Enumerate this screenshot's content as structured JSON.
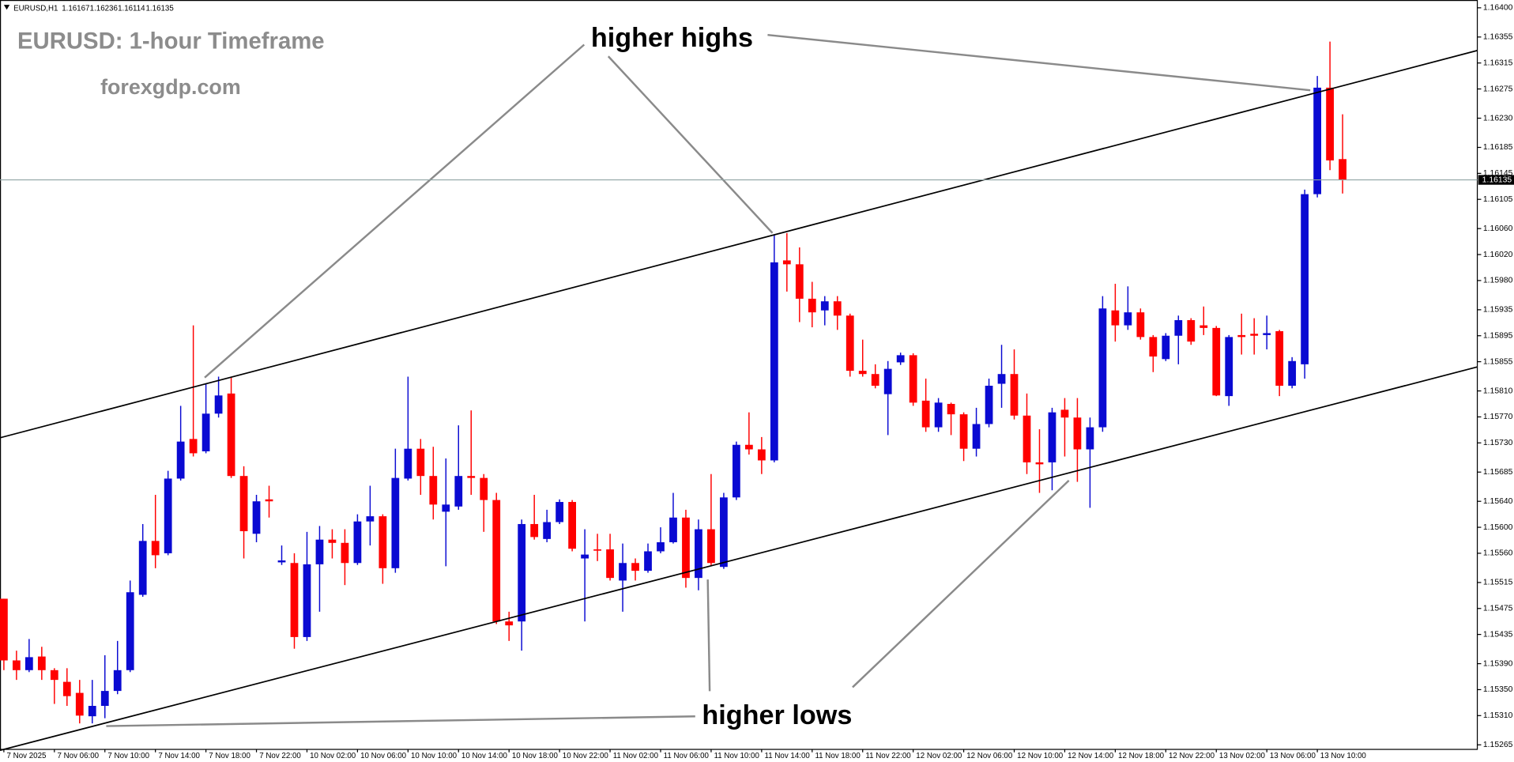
{
  "chart_data": {
    "type": "candlestick",
    "title": "EURUSD: 1-hour Timeframe",
    "subtitle": "forexgdp.com",
    "symbol": "EURUSD,H1",
    "annotations": [
      "higher highs",
      "higher lows"
    ],
    "up_color": "#0a0ad2",
    "down_color": "#ff0000",
    "ylim": [
      1.15258,
      1.16412
    ],
    "yticks": [
      {
        "value": 1.164,
        "label": "1.16400"
      },
      1.16355,
      1.16315,
      1.16275,
      {
        "value": 1.1623,
        "label": "1.16230"
      },
      1.16185,
      1.16145,
      1.16105,
      {
        "value": 1.1606,
        "label": "1.16060"
      },
      {
        "value": 1.1602,
        "label": "1.16020"
      },
      {
        "value": 1.1598,
        "label": "1.15980"
      },
      1.15935,
      1.15895,
      1.15855,
      {
        "value": 1.1581,
        "label": "1.15810"
      },
      {
        "value": 1.1577,
        "label": "1.15770"
      },
      {
        "value": 1.1573,
        "label": "1.15730"
      },
      1.15685,
      {
        "value": 1.1564,
        "label": "1.15640"
      },
      {
        "value": 1.156,
        "label": "1.15600"
      },
      {
        "value": 1.1556,
        "label": "1.15560"
      },
      1.15515,
      1.15475,
      1.15435,
      {
        "value": 1.1539,
        "label": "1.15390"
      },
      {
        "value": 1.1535,
        "label": "1.15350"
      },
      {
        "value": 1.1531,
        "label": "1.15310"
      },
      1.15265
    ],
    "x": [
      "7 Nov 2025",
      null,
      null,
      null,
      "7 Nov 06:00",
      null,
      null,
      null,
      "7 Nov 10:00",
      null,
      null,
      null,
      "7 Nov 14:00",
      null,
      null,
      null,
      "7 Nov 18:00",
      null,
      null,
      null,
      "7 Nov 22:00",
      null,
      null,
      null,
      "10 Nov 02:00",
      null,
      null,
      null,
      "10 Nov 06:00",
      null,
      null,
      null,
      "10 Nov 10:00",
      null,
      null,
      null,
      "10 Nov 14:00",
      null,
      null,
      null,
      "10 Nov 18:00",
      null,
      null,
      null,
      "10 Nov 22:00",
      null,
      null,
      null,
      "11 Nov 02:00",
      null,
      null,
      null,
      "11 Nov 06:00",
      null,
      null,
      null,
      "11 Nov 10:00",
      null,
      null,
      null,
      "11 Nov 14:00",
      null,
      null,
      null,
      "11 Nov 18:00",
      null,
      null,
      null,
      "11 Nov 22:00",
      null,
      null,
      null,
      "12 Nov 02:00",
      null,
      null,
      null,
      "12 Nov 06:00",
      null,
      null,
      null,
      "12 Nov 10:00",
      null,
      null,
      null,
      "12 Nov 14:00",
      null,
      null,
      null,
      "12 Nov 18:00",
      null,
      null,
      null,
      "12 Nov 22:00",
      null,
      null,
      null,
      "13 Nov 02:00",
      null,
      null,
      null,
      "13 Nov 06:00",
      null,
      null,
      null,
      "13 Nov 10:00",
      null,
      null
    ],
    "open": [
      1.1549,
      1.15395,
      1.1538,
      1.15401,
      1.1538,
      1.15362,
      1.15345,
      1.15309,
      1.15325,
      1.15348,
      1.1538,
      1.15496,
      1.15579,
      1.1556,
      1.15675,
      1.15736,
      1.15717,
      1.15775,
      1.15806,
      1.15679,
      1.1559,
      1.15643,
      1.15546,
      1.15545,
      1.15431,
      1.15543,
      1.15581,
      1.15576,
      1.15545,
      1.15609,
      1.15617,
      1.15537,
      1.15675,
      1.15721,
      1.15679,
      1.15624,
      1.15632,
      1.15679,
      1.15676,
      1.15642,
      1.15455,
      1.15455,
      1.15605,
      1.15582,
      1.15608,
      1.15639,
      1.15552,
      1.15566,
      1.15566,
      1.15518,
      1.15545,
      1.15533,
      1.15563,
      1.15577,
      1.15615,
      1.15522,
      1.15597,
      1.15539,
      1.15646,
      1.15727,
      1.1572,
      1.15703,
      1.16011,
      1.16005,
      1.15952,
      1.15934,
      1.15948,
      1.15926,
      1.15841,
      1.15836,
      1.15805,
      1.15854,
      1.15865,
      1.15795,
      1.15754,
      1.1579,
      1.15774,
      1.15721,
      1.15759,
      1.15821,
      1.15836,
      1.15772,
      1.157,
      1.157,
      1.15781,
      1.15769,
      1.1572,
      1.15754,
      1.15934,
      1.15911,
      1.15931,
      1.15893,
      1.15859,
      1.15895,
      1.15919,
      1.15911,
      1.15907,
      1.15802,
      1.15896,
      1.15898,
      1.15896,
      1.15902,
      1.15818,
      1.15851,
      1.16113,
      1.16277,
      1.16167
    ],
    "high": [
      1.1549,
      1.1541,
      1.15428,
      1.15416,
      1.15383,
      1.15383,
      1.15365,
      1.15365,
      1.15403,
      1.15425,
      1.15518,
      1.15605,
      1.1565,
      1.15687,
      1.15787,
      1.15911,
      1.15821,
      1.15832,
      1.15832,
      1.15694,
      1.1565,
      1.15664,
      1.15572,
      1.1556,
      1.15593,
      1.15602,
      1.15597,
      1.15597,
      1.1562,
      1.15664,
      1.1562,
      1.15721,
      1.15832,
      1.15736,
      1.15724,
      1.15706,
      1.15757,
      1.1578,
      1.15682,
      1.15653,
      1.1547,
      1.15612,
      1.1565,
      1.15627,
      1.15643,
      1.15642,
      1.15597,
      1.1559,
      1.1559,
      1.15575,
      1.15552,
      1.15575,
      1.156,
      1.15653,
      1.15627,
      1.15612,
      1.15682,
      1.15653,
      1.15732,
      1.15777,
      1.15739,
      1.1605,
      1.16053,
      1.16031,
      1.15978,
      1.15956,
      1.15956,
      1.15929,
      1.15889,
      1.15851,
      1.15856,
      1.15869,
      1.15868,
      1.15829,
      1.15799,
      1.15792,
      1.15777,
      1.15784,
      1.15829,
      1.15881,
      1.15874,
      1.15806,
      1.15751,
      1.15784,
      1.15799,
      1.15799,
      1.15769,
      1.15956,
      1.15975,
      1.15971,
      1.15937,
      1.15896,
      1.15899,
      1.15926,
      1.15922,
      1.1594,
      1.1591,
      1.15896,
      1.15929,
      1.15922,
      1.15926,
      1.15904,
      1.15862,
      1.1612,
      1.16295,
      1.16348,
      1.16236
    ],
    "low": [
      1.1538,
      1.15365,
      1.15377,
      1.15365,
      1.15328,
      1.15325,
      1.15298,
      1.15298,
      1.15306,
      1.15343,
      1.15377,
      1.15493,
      1.15537,
      1.15557,
      1.15672,
      1.15709,
      1.15714,
      1.15769,
      1.15676,
      1.15552,
      1.15577,
      1.15615,
      1.15542,
      1.15413,
      1.15425,
      1.1547,
      1.15552,
      1.15511,
      1.15542,
      1.15572,
      1.15513,
      1.1553,
      1.15672,
      1.1565,
      1.15612,
      1.1554,
      1.15627,
      1.1565,
      1.15593,
      1.15451,
      1.15425,
      1.1541,
      1.15581,
      1.15577,
      1.15605,
      1.15563,
      1.15455,
      1.15548,
      1.15518,
      1.1547,
      1.15518,
      1.1553,
      1.1556,
      1.15575,
      1.15507,
      1.15503,
      1.1554,
      1.15536,
      1.15642,
      1.15712,
      1.15682,
      1.157,
      1.15963,
      1.15916,
      1.15908,
      1.15911,
      1.15904,
      1.15832,
      1.15832,
      1.15814,
      1.15742,
      1.1585,
      1.15787,
      1.15747,
      1.15747,
      1.15742,
      1.15702,
      1.15709,
      1.15754,
      1.15784,
      1.15766,
      1.15682,
      1.15653,
      1.15657,
      1.15709,
      1.1567,
      1.1563,
      1.15747,
      1.15886,
      1.15904,
      1.15889,
      1.15839,
      1.15856,
      1.15851,
      1.15881,
      1.15896,
      1.15802,
      1.15787,
      1.15866,
      1.15866,
      1.15874,
      1.15802,
      1.15814,
      1.15829,
      1.16108,
      1.1615,
      1.16114
    ],
    "close": [
      1.15395,
      1.1538,
      1.154,
      1.1538,
      1.15365,
      1.1534,
      1.1531,
      1.15325,
      1.15348,
      1.1538,
      1.155,
      1.15579,
      1.15557,
      1.15675,
      1.15732,
      1.15714,
      1.15775,
      1.15803,
      1.15679,
      1.15594,
      1.1564,
      1.1564,
      1.15549,
      1.15431,
      1.15543,
      1.15581,
      1.15576,
      1.15545,
      1.15609,
      1.15617,
      1.15537,
      1.15676,
      1.15721,
      1.15679,
      1.15635,
      1.15635,
      1.15679,
      1.15676,
      1.15642,
      1.15455,
      1.15449,
      1.15605,
      1.15585,
      1.15608,
      1.15639,
      1.15567,
      1.15558,
      1.15564,
      1.15522,
      1.15545,
      1.15533,
      1.15563,
      1.15577,
      1.15615,
      1.15522,
      1.15597,
      1.15545,
      1.15646,
      1.15727,
      1.1572,
      1.15703,
      1.16008,
      1.16005,
      1.15952,
      1.15931,
      1.15948,
      1.15926,
      1.15841,
      1.15836,
      1.15818,
      1.15844,
      1.15865,
      1.15792,
      1.15754,
      1.15792,
      1.15774,
      1.15721,
      1.15759,
      1.15818,
      1.15836,
      1.15772,
      1.157,
      1.15697,
      1.15777,
      1.15769,
      1.1572,
      1.15754,
      1.15937,
      1.15911,
      1.15931,
      1.15893,
      1.15863,
      1.15895,
      1.15919,
      1.15886,
      1.15907,
      1.15803,
      1.15893,
      1.15893,
      1.15895,
      1.15899,
      1.15818,
      1.15856,
      1.16113,
      1.16277,
      1.16165,
      1.16135
    ]
  }
}
